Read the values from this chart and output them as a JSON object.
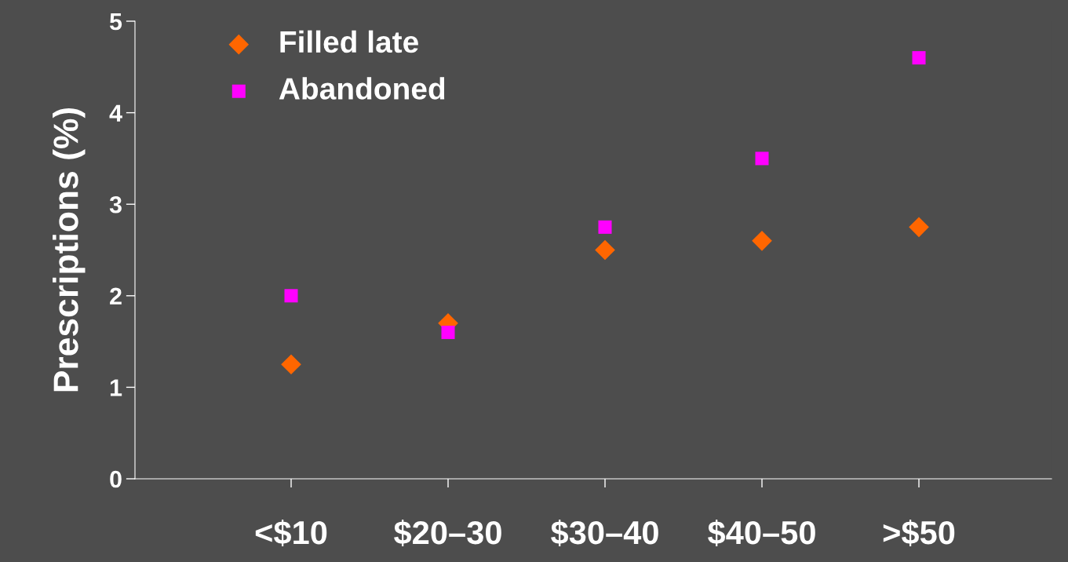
{
  "chart_data": {
    "type": "scatter",
    "ylabel": "Prescriptions (%)",
    "categories": [
      "<$10",
      "$20–30",
      "$30–40",
      "$40–50",
      ">$50"
    ],
    "series": [
      {
        "name": "Filled late",
        "color": "#ff6600",
        "marker": "diamond",
        "values": [
          1.25,
          1.7,
          2.5,
          2.6,
          2.75
        ]
      },
      {
        "name": "Abandoned",
        "color": "#ff00ff",
        "marker": "square",
        "values": [
          2.0,
          1.6,
          2.75,
          3.5,
          4.6
        ]
      }
    ],
    "ylim": [
      0,
      5
    ],
    "yticks": [
      0,
      1,
      2,
      3,
      4,
      5
    ],
    "grid": false,
    "legend": "top left"
  }
}
